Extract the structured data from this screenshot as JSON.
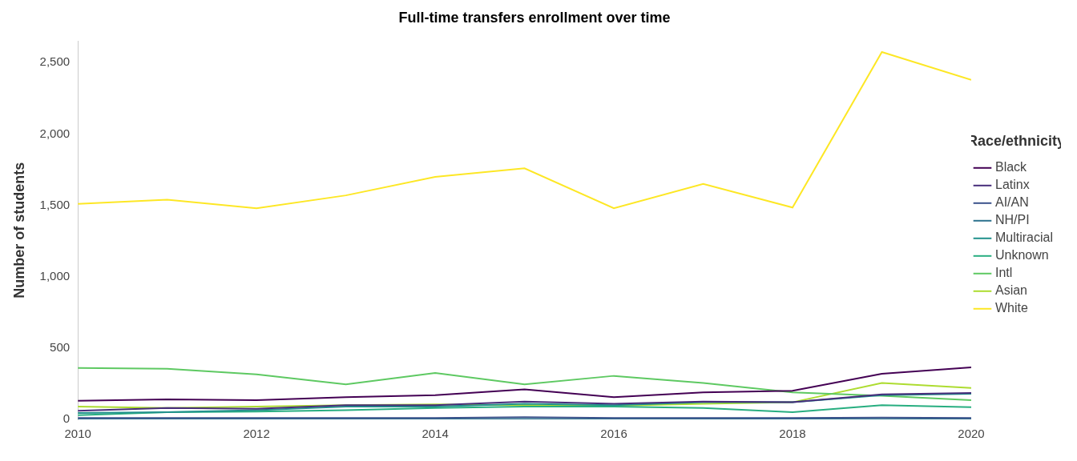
{
  "chart_data": {
    "type": "line",
    "title": "Full-time transfers enrollment over time",
    "y_label": "Number of students",
    "legend": "right",
    "legend_title": "Race/ethnicity",
    "grid": false,
    "x": [
      2010,
      2011,
      2012,
      2013,
      2014,
      2015,
      2016,
      2017,
      2018,
      2019,
      2020
    ],
    "xlim": [
      2010,
      2020
    ],
    "xticks": [
      2010,
      2012,
      2014,
      2016,
      2018,
      2020
    ],
    "ylim": [
      0,
      2650
    ],
    "yticks": [
      0,
      500,
      {
        "value": 1000,
        "label": "1,000"
      },
      {
        "value": 1500,
        "label": "1,500"
      },
      {
        "value": 2000,
        "label": "2,000"
      },
      {
        "value": 2500,
        "label": "2,500"
      }
    ],
    "series": [
      {
        "name": "Black",
        "color": "#440154",
        "values": [
          130,
          140,
          135,
          155,
          170,
          210,
          155,
          190,
          200,
          320,
          365
        ]
      },
      {
        "name": "Latinx",
        "color": "#472d7b",
        "values": [
          60,
          80,
          75,
          100,
          100,
          125,
          110,
          125,
          120,
          175,
          185
        ]
      },
      {
        "name": "AI/AN",
        "color": "#3b528b",
        "values": [
          10,
          10,
          10,
          10,
          10,
          15,
          10,
          10,
          10,
          12,
          10
        ]
      },
      {
        "name": "NH/PI",
        "color": "#2c728e",
        "values": [
          2,
          2,
          2,
          2,
          2,
          3,
          2,
          2,
          2,
          2,
          2
        ]
      },
      {
        "name": "Multiracial",
        "color": "#21918c",
        "values": [
          45,
          50,
          65,
          90,
          90,
          110,
          100,
          120,
          120,
          170,
          180
        ]
      },
      {
        "name": "Unknown",
        "color": "#28ae80",
        "values": [
          30,
          50,
          55,
          65,
          80,
          90,
          90,
          80,
          50,
          100,
          85
        ]
      },
      {
        "name": "Intl",
        "color": "#5ec962",
        "values": [
          360,
          355,
          315,
          245,
          325,
          245,
          305,
          255,
          190,
          165,
          135
        ]
      },
      {
        "name": "Asian",
        "color": "#addc30",
        "values": [
          90,
          80,
          90,
          100,
          105,
          100,
          95,
          110,
          120,
          255,
          220
        ]
      },
      {
        "name": "White",
        "color": "#fde725",
        "values": [
          1510,
          1540,
          1480,
          1570,
          1700,
          1760,
          1480,
          1650,
          1485,
          2575,
          2380
        ]
      }
    ]
  }
}
